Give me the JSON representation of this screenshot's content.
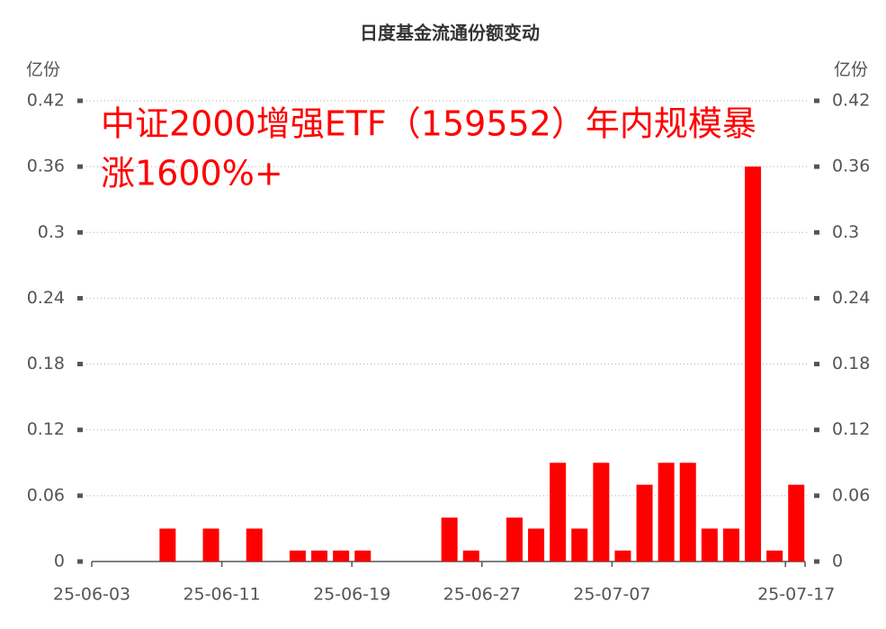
{
  "chart_data": {
    "type": "bar",
    "title": "日度基金流通份额变动",
    "y_label": "亿份",
    "annotation": [
      "中证2000增强ETF（159552）年内规模暴",
      "涨1600%+"
    ],
    "categories": [
      "25-06-03",
      null,
      null,
      null,
      null,
      null,
      "25-06-11",
      null,
      null,
      null,
      null,
      null,
      "25-06-19",
      null,
      null,
      null,
      null,
      null,
      "25-06-27",
      null,
      null,
      null,
      null,
      null,
      "25-07-07",
      null,
      null,
      null,
      null,
      null,
      null,
      null,
      "25-07-17"
    ],
    "values": [
      0,
      0,
      0,
      0.03,
      0,
      0.03,
      0,
      0.03,
      0,
      0.01,
      0.01,
      0.01,
      0.01,
      0,
      0,
      0,
      0.04,
      0.01,
      0,
      0.04,
      0.03,
      0.09,
      0.03,
      0.09,
      0.01,
      0.07,
      0.09,
      0.09,
      0.03,
      0.03,
      0.36,
      0.01,
      0.07
    ],
    "color": "#ff0000",
    "ylim": [
      0,
      0.42
    ],
    "yticks": [
      0,
      0.06,
      0.12,
      0.18,
      0.24,
      0.3,
      0.36,
      0.42
    ],
    "grid": true
  }
}
